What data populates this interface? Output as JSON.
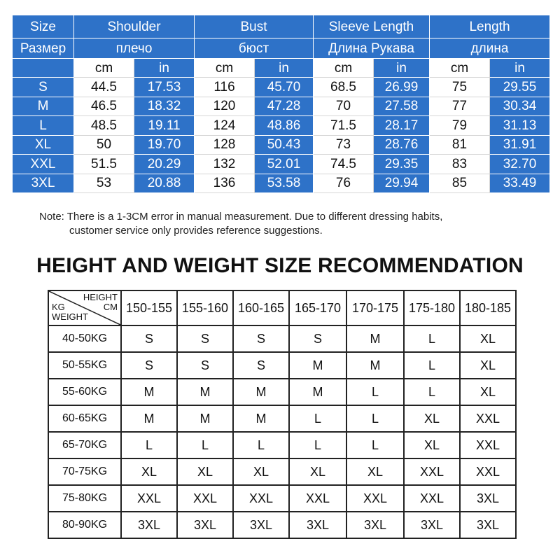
{
  "size_table": {
    "size_label_en": "Size",
    "size_label_ru": "Размер",
    "measurements": [
      {
        "en": "Shoulder",
        "ru": "плечо"
      },
      {
        "en": "Bust",
        "ru": "бюст"
      },
      {
        "en": "Sleeve Length",
        "ru": "Длина Рукава"
      },
      {
        "en": "Length",
        "ru": "длина"
      }
    ],
    "unit_cm": "cm",
    "unit_in": "in",
    "rows": [
      {
        "size": "S",
        "values": [
          "44.5",
          "17.53",
          "116",
          "45.70",
          "68.5",
          "26.99",
          "75",
          "29.55"
        ]
      },
      {
        "size": "M",
        "values": [
          "46.5",
          "18.32",
          "120",
          "47.28",
          "70",
          "27.58",
          "77",
          "30.34"
        ]
      },
      {
        "size": "L",
        "values": [
          "48.5",
          "19.11",
          "124",
          "48.86",
          "71.5",
          "28.17",
          "79",
          "31.13"
        ]
      },
      {
        "size": "XL",
        "values": [
          "50",
          "19.70",
          "128",
          "50.43",
          "73",
          "28.76",
          "81",
          "31.91"
        ]
      },
      {
        "size": "XXL",
        "values": [
          "51.5",
          "20.29",
          "132",
          "52.01",
          "74.5",
          "29.35",
          "83",
          "32.70"
        ]
      },
      {
        "size": "3XL",
        "values": [
          "53",
          "20.88",
          "136",
          "53.58",
          "76",
          "29.94",
          "85",
          "33.49"
        ]
      }
    ]
  },
  "note": {
    "line1": "Note: There is a 1-3CM error in manual measurement. Due to different dressing habits,",
    "line2": "customer service only provides reference suggestions."
  },
  "hw": {
    "title": "HEIGHT AND WEIGHT SIZE RECOMMENDATION",
    "corner": {
      "height": "HEIGHT",
      "cm": "CM",
      "kg": "KG",
      "weight": "WEIGHT"
    },
    "heights": [
      "150-155",
      "155-160",
      "160-165",
      "165-170",
      "170-175",
      "175-180",
      "180-185"
    ],
    "rows": [
      {
        "weight": "40-50KG",
        "sizes": [
          "S",
          "S",
          "S",
          "S",
          "M",
          "L",
          "XL"
        ]
      },
      {
        "weight": "50-55KG",
        "sizes": [
          "S",
          "S",
          "S",
          "M",
          "M",
          "L",
          "XL"
        ]
      },
      {
        "weight": "55-60KG",
        "sizes": [
          "M",
          "M",
          "M",
          "M",
          "L",
          "L",
          "XL"
        ]
      },
      {
        "weight": "60-65KG",
        "sizes": [
          "M",
          "M",
          "M",
          "L",
          "L",
          "XL",
          "XXL"
        ]
      },
      {
        "weight": "65-70KG",
        "sizes": [
          "L",
          "L",
          "L",
          "L",
          "L",
          "XL",
          "XXL"
        ]
      },
      {
        "weight": "70-75KG",
        "sizes": [
          "XL",
          "XL",
          "XL",
          "XL",
          "XL",
          "XXL",
          "XXL"
        ]
      },
      {
        "weight": "75-80KG",
        "sizes": [
          "XXL",
          "XXL",
          "XXL",
          "XXL",
          "XXL",
          "XXL",
          "3XL"
        ]
      },
      {
        "weight": "80-90KG",
        "sizes": [
          "3XL",
          "3XL",
          "3XL",
          "3XL",
          "3XL",
          "3XL",
          "3XL"
        ]
      }
    ]
  },
  "colors": {
    "header_blue": "#2e72c8",
    "text": "#111111"
  }
}
